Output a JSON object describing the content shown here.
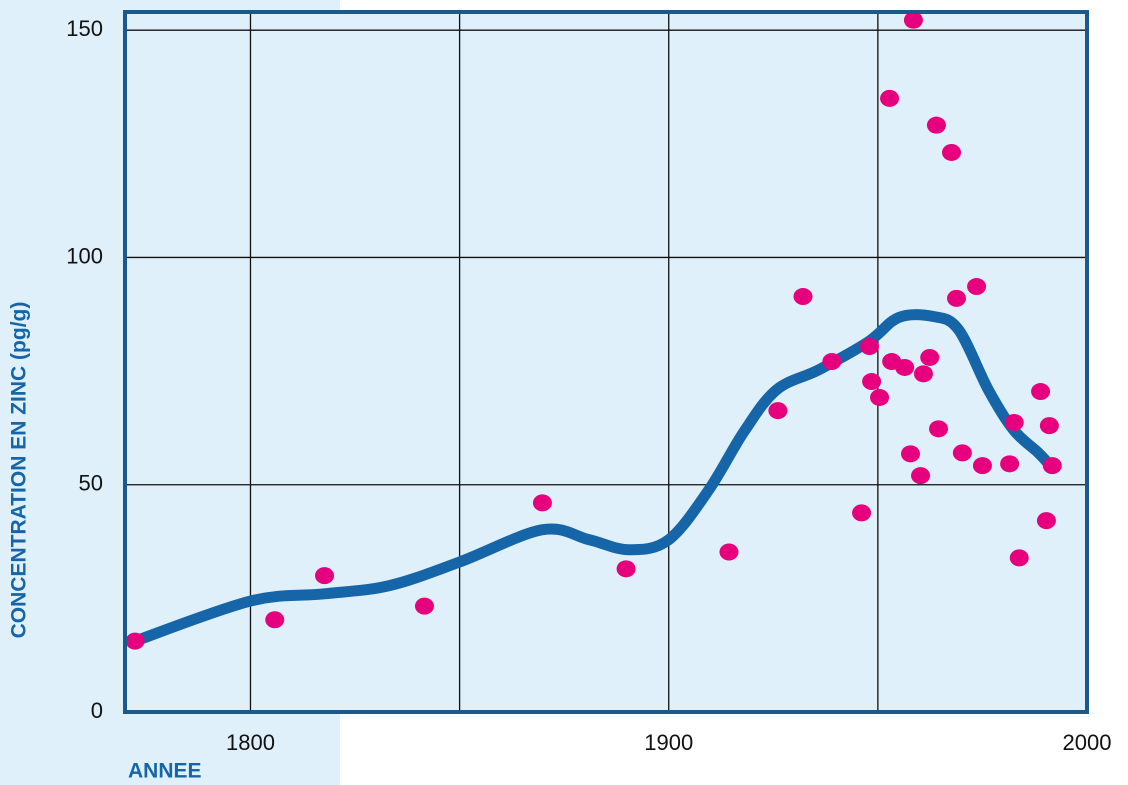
{
  "chart_data": {
    "type": "scatter",
    "xlabel": "ANNEE",
    "ylabel": "CONCENTRATION EN ZINC (pg/g)",
    "xlim": [
      1770,
      2000
    ],
    "ylim": [
      0,
      154
    ],
    "xticks": [
      1800,
      1900,
      2000
    ],
    "xgrid": [
      1800,
      1850,
      1900,
      1950
    ],
    "yticks": [
      0,
      50,
      100,
      150
    ],
    "grid": true,
    "points": {
      "color": "#e6007e",
      "x": [
        1772.4,
        1805.8,
        1817.7,
        1841.6,
        1869.8,
        1889.8,
        1914.4,
        1926.1,
        1932.1,
        1939.0,
        1946.1,
        1948.0,
        1948.5,
        1950.4,
        1952.8,
        1953.3,
        1956.4,
        1957.8,
        1958.5,
        1960.2,
        1960.9,
        1962.4,
        1964.0,
        1964.5,
        1967.6,
        1968.8,
        1970.2,
        1973.6,
        1975.0,
        1981.5,
        1982.6,
        1983.8,
        1988.9,
        1990.3,
        1991.0,
        1991.7
      ],
      "values": [
        15.6,
        20.3,
        30.0,
        23.3,
        46.0,
        31.5,
        35.2,
        66.3,
        91.4,
        77.1,
        43.8,
        80.4,
        72.7,
        69.2,
        135.0,
        77.1,
        75.8,
        56.8,
        152.2,
        52.0,
        74.4,
        78.0,
        129.1,
        62.3,
        123.1,
        91.0,
        57.0,
        93.6,
        54.2,
        54.6,
        63.7,
        33.9,
        70.5,
        42.1,
        63.0,
        54.2
      ]
    },
    "trend": {
      "color": "#1565a8",
      "x": [
        1772.4,
        1800,
        1817.7,
        1833.2,
        1850,
        1869.8,
        1881,
        1890.5,
        1900,
        1909.6,
        1918,
        1925.8,
        1935.9,
        1947.8,
        1955,
        1963.3,
        1969.3,
        1976.4,
        1982.4,
        1988.4,
        1991.2
      ],
      "values": [
        15.6,
        24.4,
        26.0,
        27.8,
        33.0,
        40.1,
        37.9,
        35.7,
        37.9,
        48.9,
        61.7,
        70.9,
        75.3,
        81.5,
        86.8,
        87.0,
        84.1,
        70.9,
        62.1,
        57.0,
        54.2
      ]
    }
  }
}
